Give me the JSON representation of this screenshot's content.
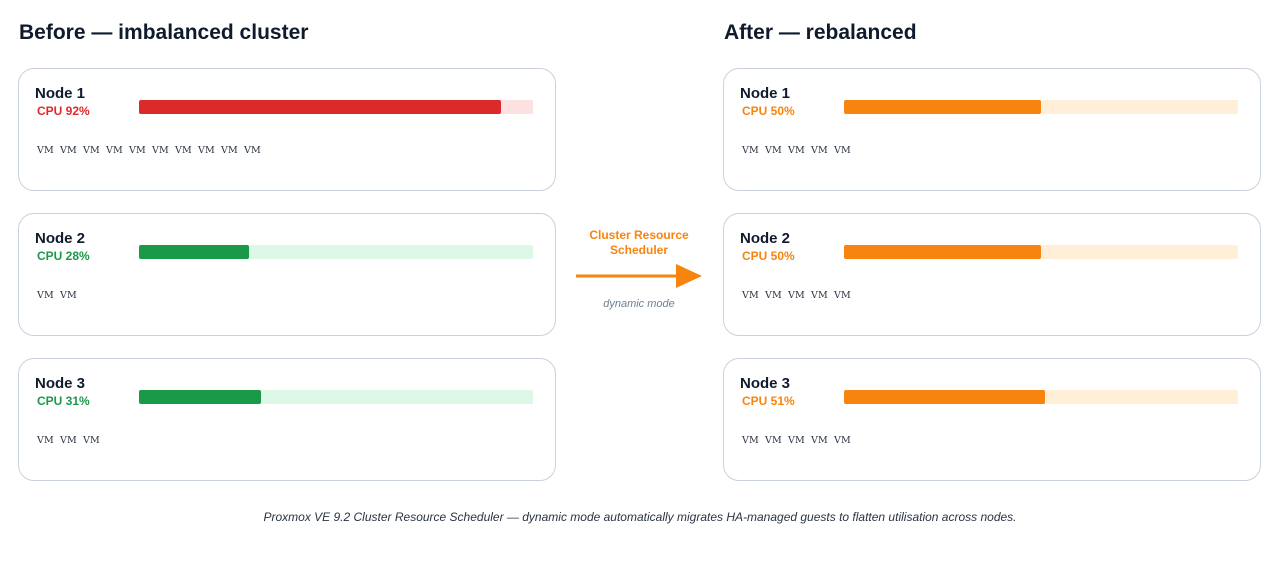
{
  "headings": {
    "before": "Before — imbalanced cluster",
    "after": "After — rebalanced"
  },
  "before": {
    "nodes": [
      {
        "name": "Node 1",
        "cpu_label": "CPU 92%",
        "cpu": 0.92,
        "color": "#dc2a2a",
        "track": "#fde1e1",
        "vms": [
          "VM",
          "VM",
          "VM",
          "VM",
          "VM",
          "VM",
          "VM",
          "VM",
          "VM",
          "VM"
        ]
      },
      {
        "name": "Node 2",
        "cpu_label": "CPU 28%",
        "cpu": 0.28,
        "color": "#1a9a49",
        "track": "#ddf8e6",
        "vms": [
          "VM",
          "VM"
        ]
      },
      {
        "name": "Node 3",
        "cpu_label": "CPU 31%",
        "cpu": 0.31,
        "color": "#1a9a49",
        "track": "#ddf8e6",
        "vms": [
          "VM",
          "VM",
          "VM"
        ]
      }
    ]
  },
  "after": {
    "nodes": [
      {
        "name": "Node 1",
        "cpu_label": "CPU 50%",
        "cpu": 0.5,
        "color": "#f7840f",
        "track": "#ffefd9",
        "vms": [
          "VM",
          "VM",
          "VM",
          "VM",
          "VM"
        ]
      },
      {
        "name": "Node 2",
        "cpu_label": "CPU 50%",
        "cpu": 0.5,
        "color": "#f7840f",
        "track": "#ffefd9",
        "vms": [
          "VM",
          "VM",
          "VM",
          "VM",
          "VM"
        ]
      },
      {
        "name": "Node 3",
        "cpu_label": "CPU 51%",
        "cpu": 0.51,
        "color": "#f7840f",
        "track": "#ffefd9",
        "vms": [
          "VM",
          "VM",
          "VM",
          "VM",
          "VM"
        ]
      }
    ]
  },
  "transition": {
    "label_line1": "Cluster Resource",
    "label_line2": "Scheduler",
    "mode": "dynamic mode",
    "color": "#f7840f"
  },
  "caption": "Proxmox VE 9.2 Cluster Resource Scheduler — dynamic mode automatically migrates HA-managed guests to flatten utilisation across nodes."
}
